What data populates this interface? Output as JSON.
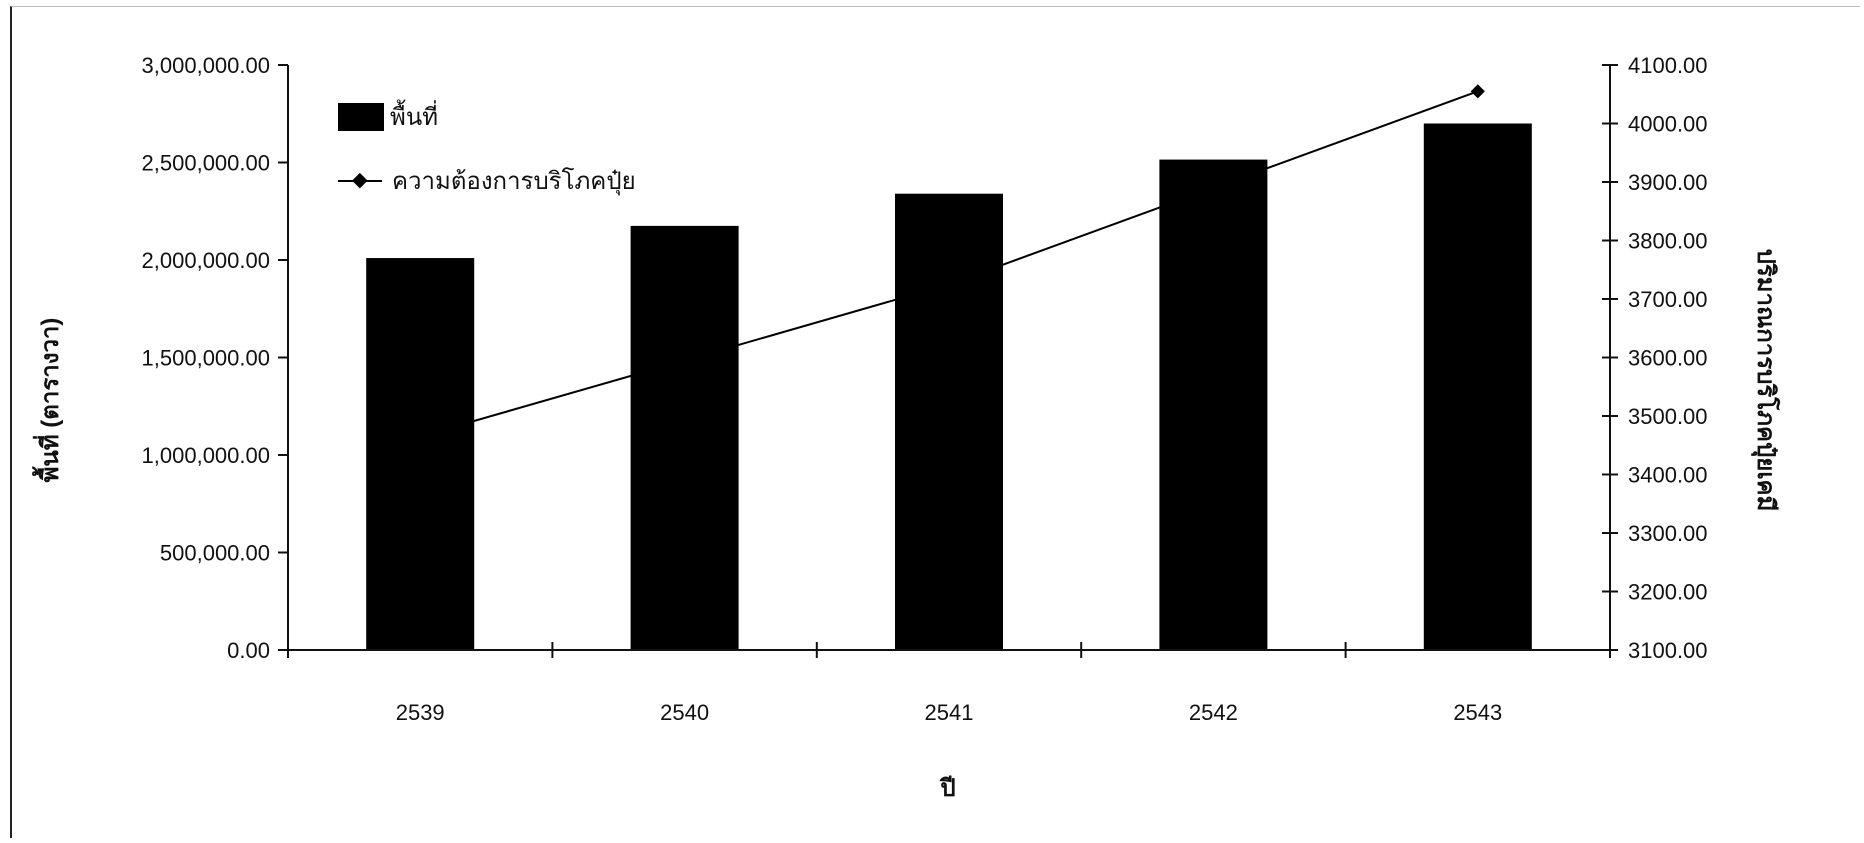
{
  "chart_data": {
    "type": "bar",
    "categories": [
      "2539",
      "2540",
      "2541",
      "2542",
      "2543"
    ],
    "series": [
      {
        "name": "พื้นที่",
        "kind": "bar",
        "axis": "left",
        "color": "#000000",
        "values": [
          2010000,
          2175000,
          2340000,
          2515000,
          2700000
        ]
      },
      {
        "name": "ความต้องการบริโภคปุ๋ย",
        "kind": "line",
        "axis": "right",
        "color": "#000000",
        "values": [
          3465,
          3595,
          3725,
          3890,
          4055
        ]
      }
    ],
    "xlabel": "ปี",
    "ylabel_left": "พื้นที่ (ตารางวา)",
    "ylabel_right": "ปริมาณการบริโภคปุ๋ยเคมี",
    "ylim_left": [
      0,
      3000000
    ],
    "ylim_right": [
      3100,
      4100
    ],
    "left_ticks": [
      "0.00",
      "500,000.00",
      "1,000,000.00",
      "1,500,000.00",
      "2,000,000.00",
      "2,500,000.00",
      "3,000,000.00"
    ],
    "right_ticks": [
      "3100.00",
      "3200.00",
      "3300.00",
      "3400.00",
      "3500.00",
      "3600.00",
      "3700.00",
      "3800.00",
      "3900.00",
      "4000.00",
      "4100.00"
    ],
    "grid": false,
    "legend_position": "top-left"
  }
}
